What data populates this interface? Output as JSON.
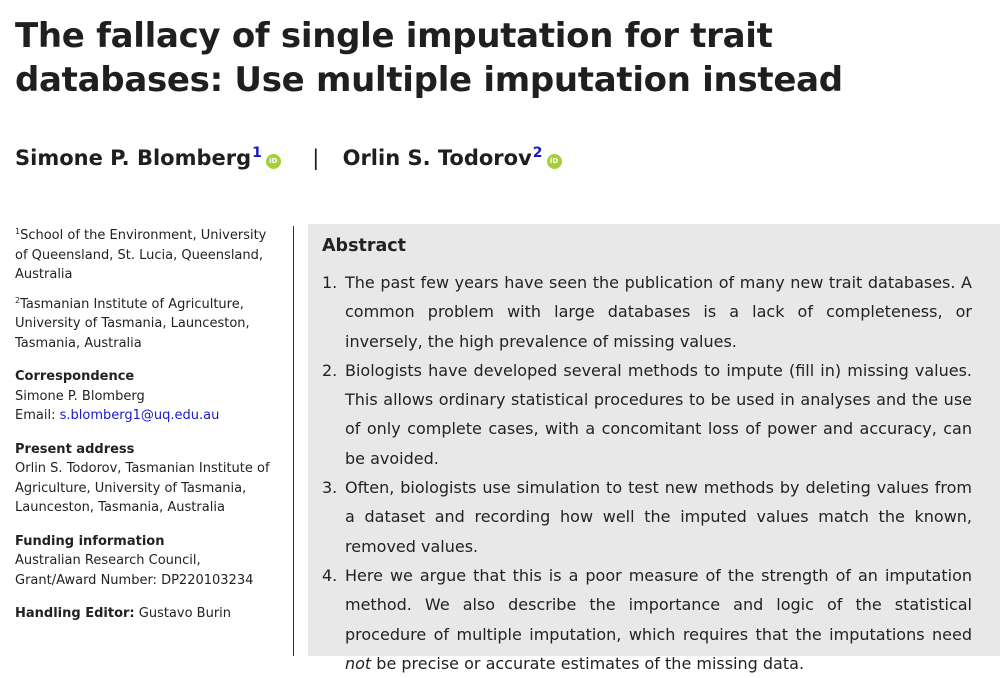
{
  "title": "The fallacy of single imputation for trait databases: Use multiple imputation instead",
  "authors": [
    {
      "name": "Simone P. Blomberg",
      "sup": "1",
      "orcid": "iD"
    },
    {
      "name": "Orlin S. Todorov",
      "sup": "2",
      "orcid": "iD"
    }
  ],
  "author_separator": "|",
  "affiliations": [
    {
      "num": "1",
      "text": "School of the Environment, University of Queensland, St. Lucia, Queensland, Australia"
    },
    {
      "num": "2",
      "text": "Tasmanian Institute of Agriculture, University of Tasmania, Launceston, Tasmania, Australia"
    }
  ],
  "correspondence": {
    "heading": "Correspondence",
    "name": "Simone P. Blomberg",
    "email_label": "Email: ",
    "email": "s.blomberg1@uq.edu.au"
  },
  "present_address": {
    "heading": "Present address",
    "text": "Orlin S. Todorov, Tasmanian Institute of Agriculture, University of Tasmania, Launceston, Tasmania, Australia"
  },
  "funding": {
    "heading": "Funding information",
    "text": "Australian Research Council, Grant/Award Number: DP220103234"
  },
  "handling_editor": {
    "heading": "Handling Editor:",
    "name": "Gustavo Burin"
  },
  "abstract": {
    "heading": "Abstract",
    "items": [
      {
        "num": "1.",
        "text": "The past few years have seen the publication of many new trait databases. A common problem with large databases is a lack of completeness, or inversely, the high prevalence of missing values."
      },
      {
        "num": "2.",
        "text": "Biologists have developed several methods to impute (fill in) missing values. This allows ordinary statistical procedures to be used in analyses and the use of only complete cases, with a concomitant loss of power and accuracy, can be avoided."
      },
      {
        "num": "3.",
        "text": "Often, biologists use simulation to test new methods by deleting values from a dataset and recording how well the imputed values match the known, removed values."
      },
      {
        "num": "4.",
        "text_before": "Here we argue that this is a poor measure of the strength of an imputation method. We also describe the importance and logic of the statistical procedure of multiple imputation, which requires that the imputations need ",
        "emphasis": "not",
        "text_after": " be precise or accurate estimates of the missing data."
      }
    ]
  },
  "colors": {
    "link": "#1a1acc",
    "orcid": "#a6ce39",
    "abstract_bg": "#e8e8e8"
  }
}
